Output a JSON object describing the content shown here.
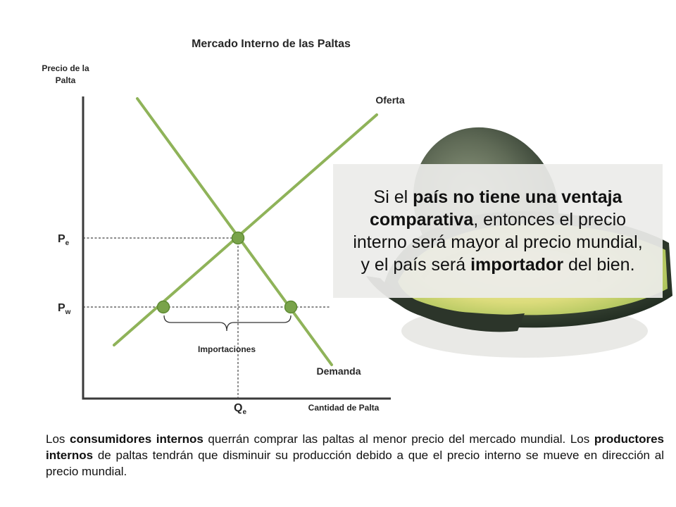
{
  "chart_data": {
    "type": "supply-demand diagram",
    "title": "Mercado Interno de las Paltas",
    "ylabel_line1": "Precio de la",
    "ylabel_line2": "Palta",
    "xlabel": "Cantidad de Palta",
    "supply_label": "Oferta",
    "demand_label": "Demanda",
    "domestic_price_label": "P",
    "domestic_price_sub": "e",
    "world_price_label": "P",
    "world_price_sub": "w",
    "equilibrium_quantity_label": "Q",
    "equilibrium_quantity_sub": "e",
    "brace_label": "Importaciones",
    "colors": {
      "curves": "#8fb359",
      "points": "#79a34a",
      "axis": "#3a3a3a",
      "guides": "#444444"
    }
  },
  "callout": {
    "t1": "Si el ",
    "b1": "país no tiene una ventaja comparativa",
    "t2": ", entonces el precio interno será mayor al precio mundial, y el país será ",
    "b2": "importador",
    "t3": " del bien."
  },
  "note": {
    "t1": "Los ",
    "b1": "consumidores internos",
    "t2": " querrán comprar las paltas al menor precio del mercado mundial. Los ",
    "b2": "productores internos",
    "t3": " de paltas tendrán que disminuir su producción debido a que el precio interno se mueve en dirección al precio mundial."
  },
  "background_image": "avocado-halves"
}
